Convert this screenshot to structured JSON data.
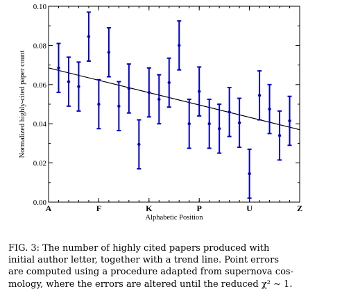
{
  "chart_data": {
    "type": "scatter",
    "ylabel": "Normalized highly-cited paper count",
    "xlabel": "Alphabetic Position",
    "ylim": [
      0.0,
      0.1
    ],
    "xlim": [
      1,
      26
    ],
    "y_ticks": [
      "0.00",
      "0.02",
      "0.04",
      "0.06",
      "0.08",
      "0.10"
    ],
    "x_tick_labels": [
      {
        "x": 1,
        "label": "A"
      },
      {
        "x": 6,
        "label": "F"
      },
      {
        "x": 11,
        "label": "K"
      },
      {
        "x": 16,
        "label": "P"
      },
      {
        "x": 21,
        "label": "U"
      },
      {
        "x": 26,
        "label": "Z"
      }
    ],
    "series": [
      {
        "x": [
          2,
          3,
          4,
          5,
          6,
          7,
          8,
          9,
          10,
          11,
          12,
          13,
          14,
          15,
          16,
          17,
          18,
          19,
          20,
          21,
          22,
          23,
          24,
          25
        ],
        "y": [
          0.0685,
          0.0615,
          0.059,
          0.0845,
          0.05,
          0.0765,
          0.049,
          0.058,
          0.0295,
          0.056,
          0.0525,
          0.061,
          0.08,
          0.04,
          0.0565,
          0.04,
          0.0375,
          0.046,
          0.0405,
          0.0145,
          0.0545,
          0.0475,
          0.034,
          0.0415
        ],
        "err": [
          0.0125,
          0.0125,
          0.0125,
          0.0125,
          0.0125,
          0.0125,
          0.0125,
          0.0125,
          0.0125,
          0.0125,
          0.0125,
          0.0125,
          0.0125,
          0.0125,
          0.0125,
          0.0125,
          0.0125,
          0.0125,
          0.0125,
          0.0125,
          0.0125,
          0.0125,
          0.0125,
          0.0125
        ]
      }
    ],
    "trend_line": {
      "x": [
        1,
        26
      ],
      "y": [
        0.0685,
        0.037
      ]
    },
    "colors": {
      "points": "#0000cc",
      "trend": "#000000"
    }
  },
  "caption": {
    "lines": [
      "FIG. 3: The number of highly cited papers produced with",
      "initial author letter, together with a trend line. Point errors",
      "are computed using a procedure adapted from supernova cos-",
      "mology, where the errors are altered until the reduced χ² ∼ 1."
    ]
  }
}
